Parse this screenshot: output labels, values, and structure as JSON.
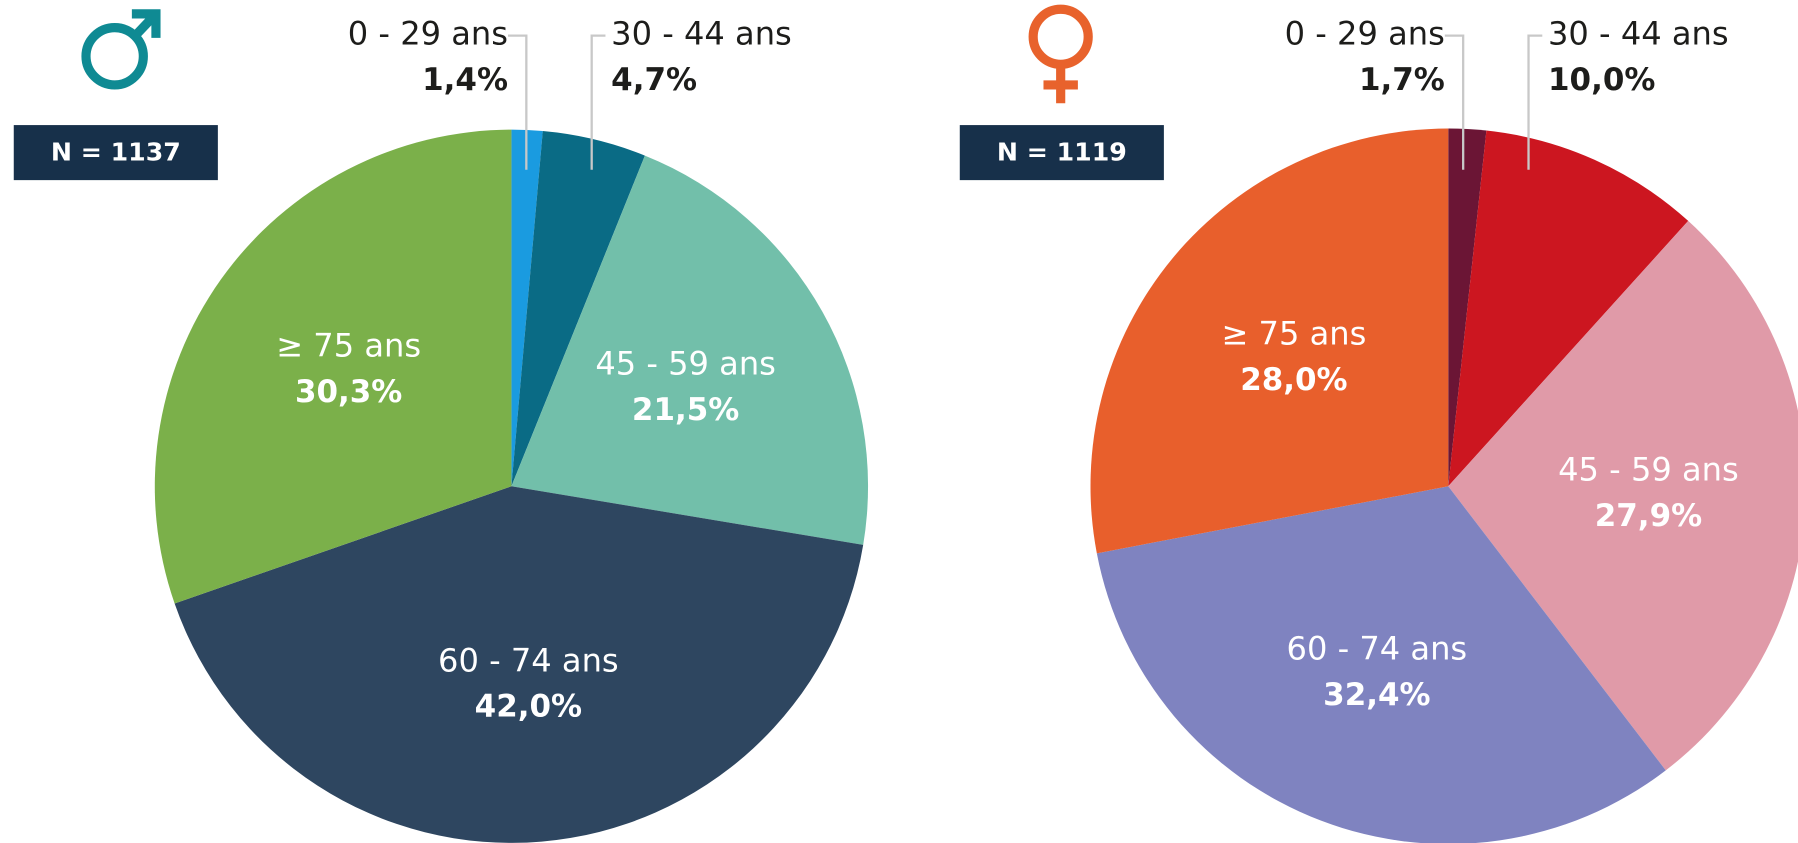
{
  "chart_data": [
    {
      "type": "pie",
      "sample_label": "N = 1137",
      "categories": [
        "0 - 29 ans",
        "30 - 44 ans",
        "45 - 59 ans",
        "60 - 74 ans",
        "≥ 75 ans"
      ],
      "values": [
        1.4,
        4.7,
        21.5,
        42.0,
        30.3
      ],
      "value_labels": [
        "1,4%",
        "4,7%",
        "21,5%",
        "42,0%",
        "30,3%"
      ],
      "colors": [
        "#1a9be0",
        "#0a6b85",
        "#72bfaa",
        "#2e4660",
        "#7bb04a"
      ]
    },
    {
      "type": "pie",
      "sample_label": "N = 1119",
      "categories": [
        "0 - 29 ans",
        "30 - 44 ans",
        "45 - 59 ans",
        "60 - 74 ans",
        "≥ 75 ans"
      ],
      "values": [
        1.7,
        10.0,
        27.9,
        32.4,
        28.0
      ],
      "value_labels": [
        "1,7%",
        "10,0%",
        "27,9%",
        "32,4%",
        "28,0%"
      ],
      "colors": [
        "#6b1535",
        "#cc1620",
        "#e09aa8",
        "#7f83c0",
        "#e85f2c"
      ]
    }
  ]
}
